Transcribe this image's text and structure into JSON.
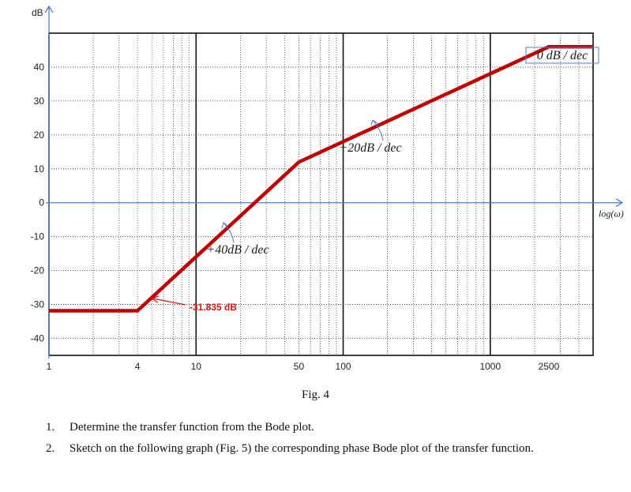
{
  "chart_data": {
    "type": "line",
    "title": "",
    "xlabel": "log(ω)",
    "ylabel": "dB",
    "x_scale": "log",
    "xlim": [
      1,
      5000
    ],
    "ylim": [
      -45,
      50
    ],
    "grid": true,
    "x_tick_labels": [
      "1",
      "4",
      "10",
      "50",
      "100",
      "1000",
      "2500"
    ],
    "x_tick_values": [
      1,
      4,
      10,
      50,
      100,
      1000,
      2500
    ],
    "y_tick_labels": [
      "40",
      "30",
      "20",
      "10",
      "0",
      "-10",
      "-20",
      "-30",
      "-40"
    ],
    "y_tick_values": [
      40,
      30,
      20,
      10,
      0,
      -10,
      -20,
      -30,
      -40
    ],
    "series": [
      {
        "color": "#c00000",
        "x": [
          1,
          4,
          50,
          2500,
          5000
        ],
        "y": [
          -31.835,
          -31.835,
          12,
          46,
          46
        ]
      }
    ],
    "annotations": [
      {
        "text": "0 dB / dec",
        "x": 3000,
        "y": 43
      },
      {
        "text": "+20dB / dec",
        "x": 200,
        "y": 14
      },
      {
        "text": "+40dB / dec",
        "x": 23,
        "y": -17
      },
      {
        "text": "-31.835 dB",
        "x": 10,
        "y": -35
      }
    ]
  },
  "caption": "Fig. 4",
  "questions": [
    {
      "num": "1.",
      "text": "Determine the transfer function from the Bode plot."
    },
    {
      "num": "2.",
      "text": "Sketch on the following graph (Fig. 5) the corresponding phase Bode plot of the transfer function."
    }
  ]
}
